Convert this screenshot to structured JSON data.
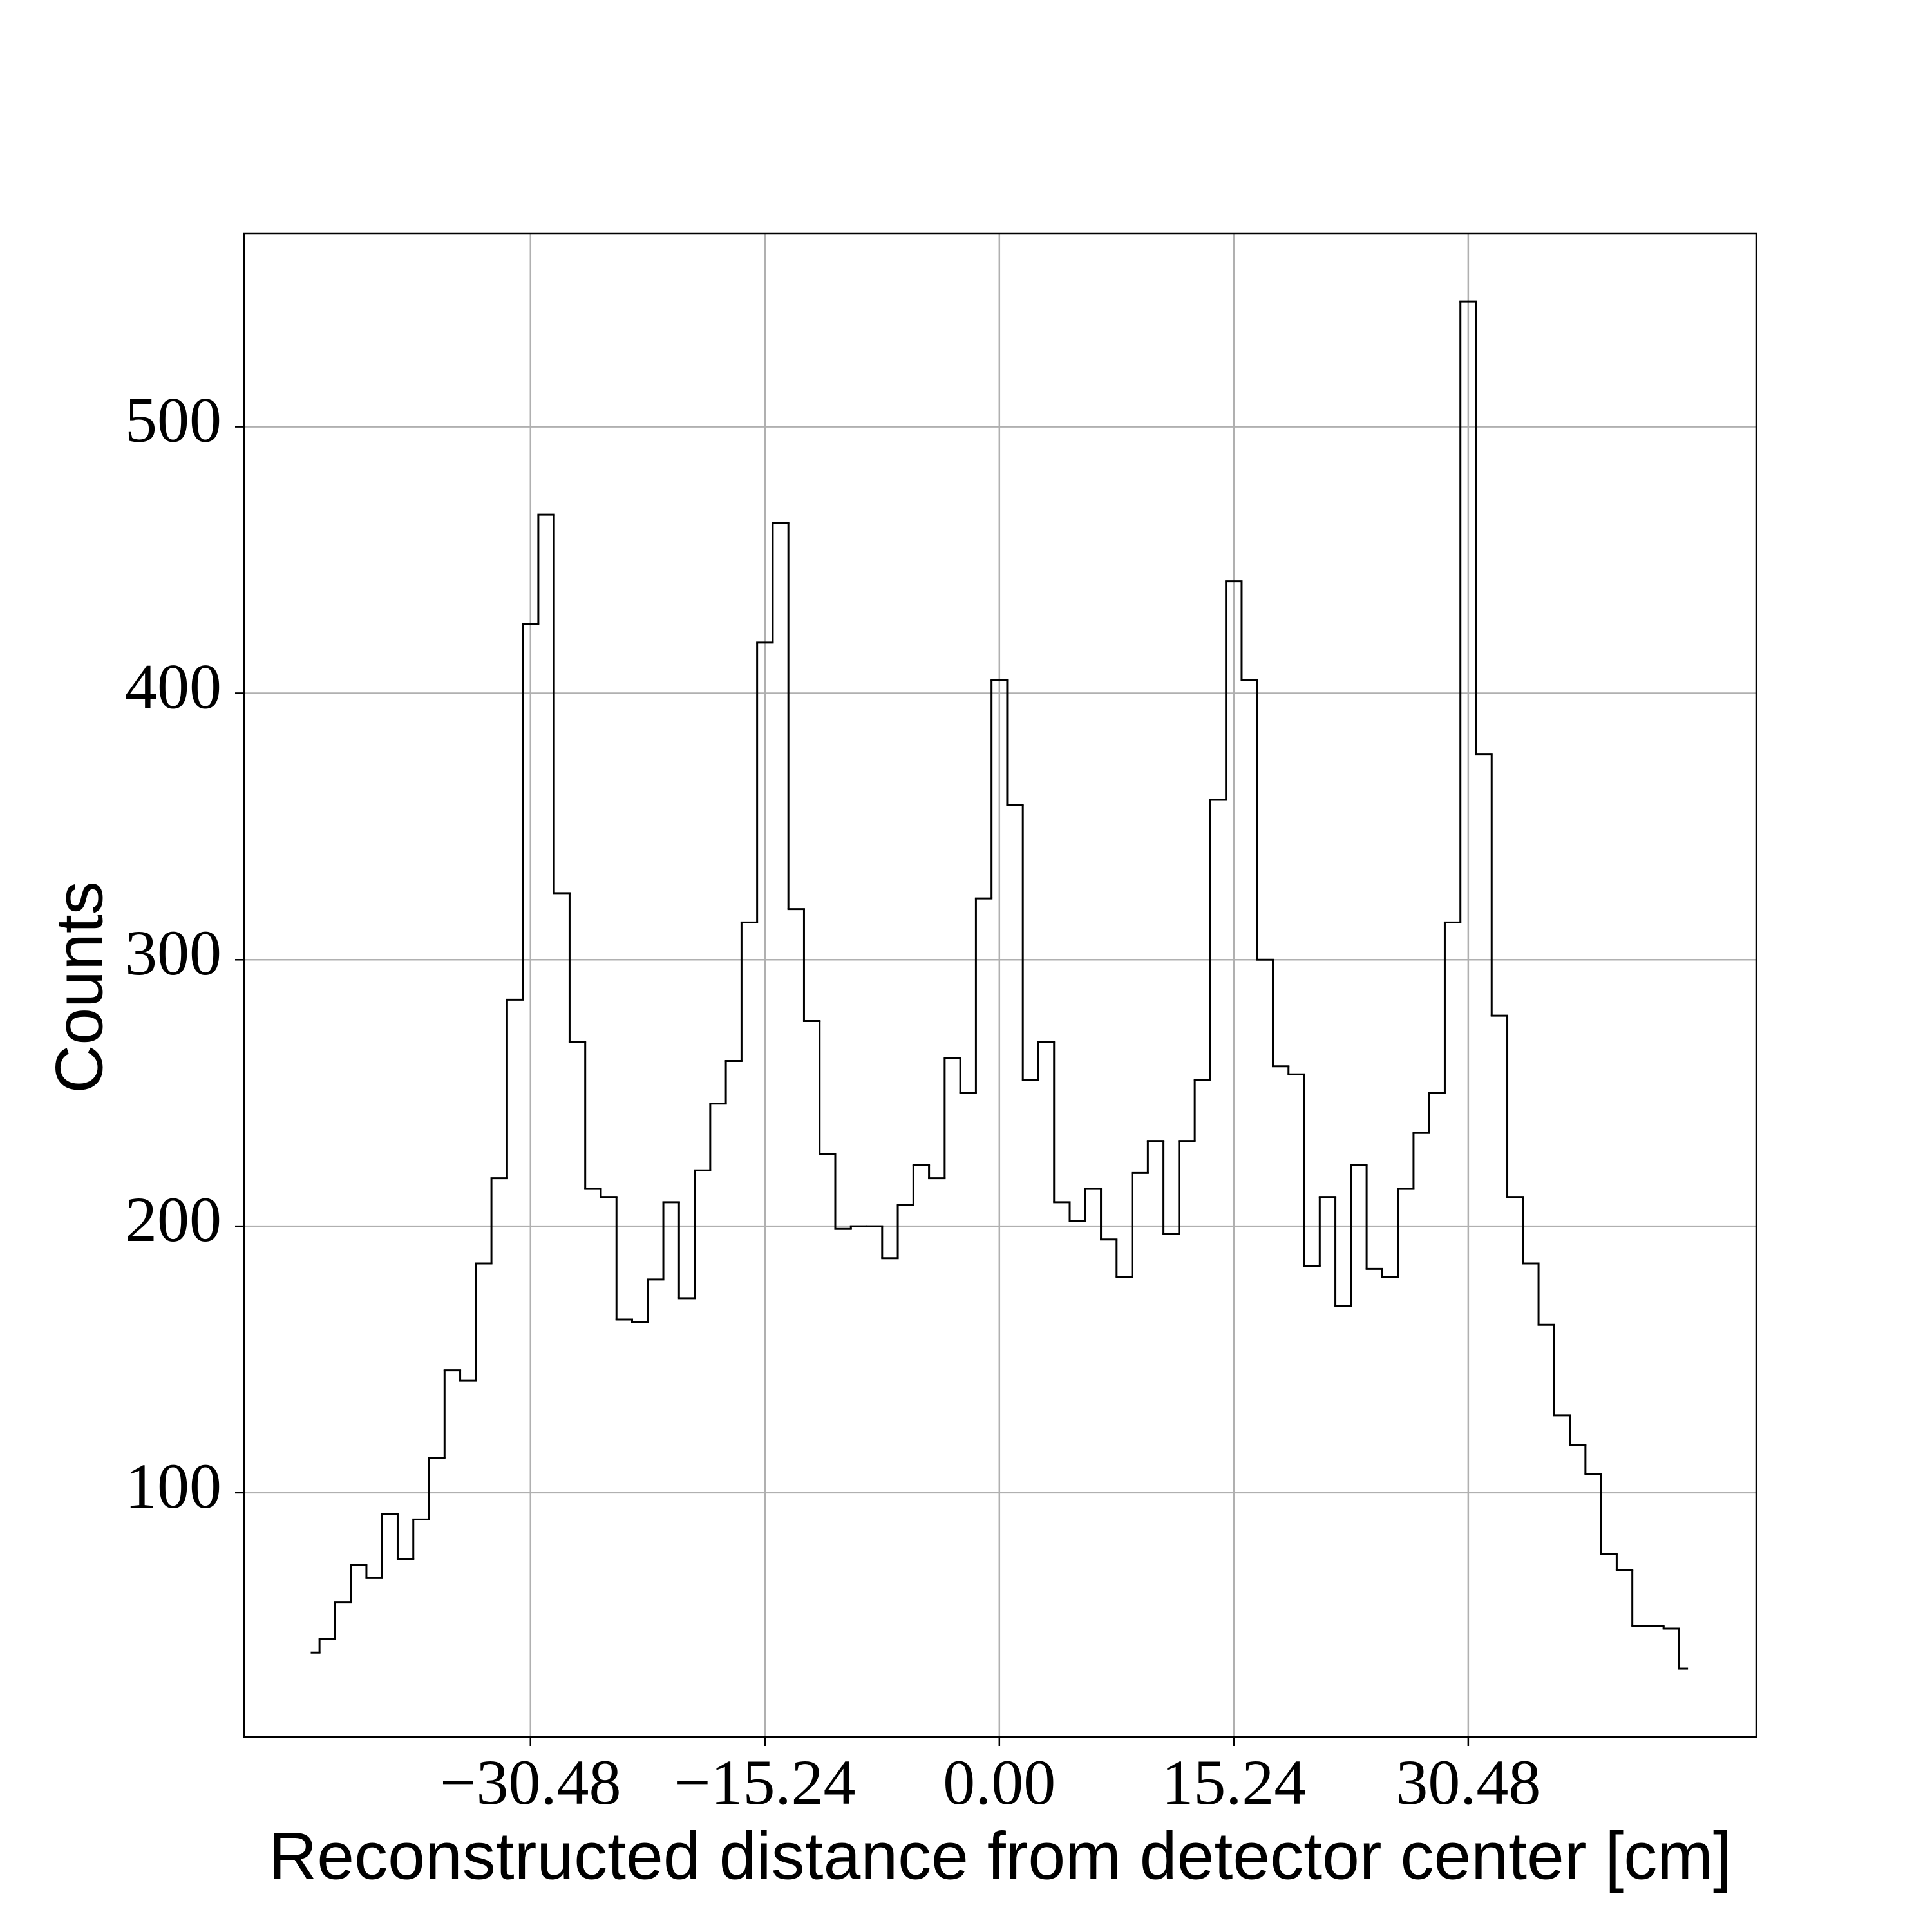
{
  "chart_data": {
    "type": "line",
    "step": "mid",
    "xlabel": "Reconstructed distance from detector center [cm]",
    "ylabel": "Counts",
    "color": "#000000",
    "grid": true,
    "xlim": [
      -49.1,
      49.2
    ],
    "ylim": [
      8.4,
      572.4
    ],
    "xticks": [
      {
        "value": -30.48,
        "label": "−30.48"
      },
      {
        "value": -15.24,
        "label": "−15.24"
      },
      {
        "value": 0,
        "label": "0.00"
      },
      15.24,
      30.48
    ],
    "yticks": [
      100,
      200,
      300,
      400,
      500
    ],
    "x": [
      -44.704,
      -43.688,
      -42.672,
      -41.656,
      -40.64,
      -39.624,
      -38.608,
      -37.592,
      -36.576,
      -35.56,
      -34.544,
      -33.528,
      -32.512,
      -31.496,
      -30.48,
      -29.464,
      -28.448,
      -27.432,
      -26.416,
      -25.4,
      -24.384,
      -23.368,
      -22.352,
      -21.336,
      -20.32,
      -19.304,
      -18.288,
      -17.272,
      -16.256,
      -15.24,
      -14.224,
      -13.208,
      -12.192,
      -11.176,
      -10.16,
      -9.144,
      -8.128,
      -7.112,
      -6.096,
      -5.08,
      -4.064,
      -3.048,
      -2.032,
      -1.016,
      0,
      1.016,
      2.032,
      3.048,
      4.064,
      5.08,
      6.096,
      7.112,
      8.128,
      9.144,
      10.16,
      11.176,
      12.192,
      13.208,
      14.224,
      15.24,
      16.256,
      17.272,
      18.288,
      19.304,
      20.32,
      21.336,
      22.352,
      23.368,
      24.384,
      25.4,
      26.416,
      27.432,
      28.448,
      29.464,
      30.48,
      31.496,
      32.512,
      33.528,
      34.544,
      35.56,
      36.576,
      37.592,
      38.608,
      39.624,
      40.64,
      41.656,
      42.672,
      43.688,
      44.704
    ],
    "values": [
      40,
      45,
      59,
      73,
      68,
      92,
      75,
      90,
      113,
      146,
      142,
      186,
      218,
      285,
      426,
      467,
      325,
      269,
      214,
      211,
      165,
      164,
      180,
      209,
      173,
      221,
      246,
      262,
      314,
      419,
      464,
      319,
      277,
      227,
      199,
      200,
      200,
      188,
      208,
      223,
      218,
      263,
      250,
      323,
      405,
      358,
      255,
      269,
      209,
      202,
      214,
      195,
      181,
      220,
      232,
      197,
      232,
      255,
      360,
      442,
      405,
      300,
      260,
      257,
      185,
      211,
      170,
      223,
      184,
      181,
      214,
      235,
      250,
      314,
      547,
      377,
      279,
      211,
      186,
      163,
      129,
      118,
      107,
      77,
      71,
      50,
      50,
      49,
      34
    ]
  }
}
